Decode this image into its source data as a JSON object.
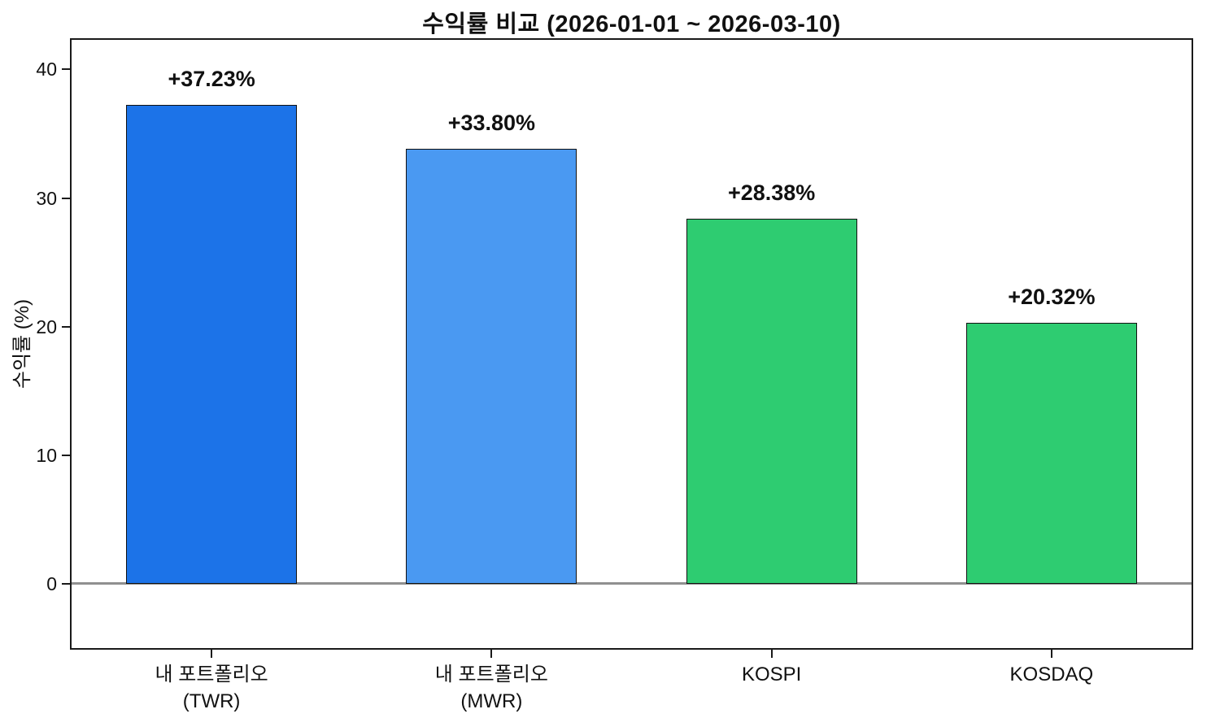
{
  "chart_data": {
    "type": "bar",
    "title": "수익률 비교 (2026-01-01 ~ 2026-03-10)",
    "xlabel": "",
    "ylabel": "수익률 (%)",
    "categories": [
      "내 포트폴리오\n(TWR)",
      "내 포트폴리오\n(MWR)",
      "KOSPI",
      "KOSDAQ"
    ],
    "values": [
      37.23,
      33.8,
      28.38,
      20.32
    ],
    "bar_labels": [
      "+37.23%",
      "+33.80%",
      "+28.38%",
      "+20.32%"
    ],
    "bar_colors": [
      "#1c73e8",
      "#4a99f2",
      "#2ecc71",
      "#2ecc71"
    ],
    "bar_edge_color": "#111111",
    "yticks": [
      0,
      10,
      20,
      30,
      40
    ],
    "ylim": [
      -5.0,
      42.3
    ],
    "bar_width_fraction": 0.61,
    "zero_line_color": "#909090",
    "grid": false,
    "legend": null,
    "background_color": "#ffffff"
  }
}
